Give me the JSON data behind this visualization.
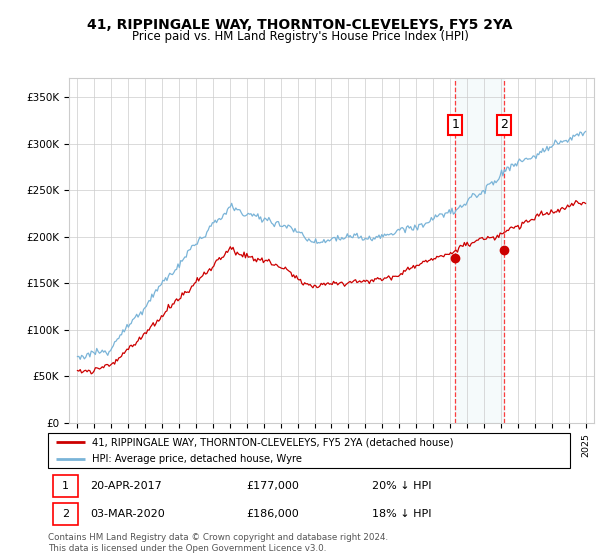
{
  "title": "41, RIPPINGALE WAY, THORNTON-CLEVELEYS, FY5 2YA",
  "subtitle": "Price paid vs. HM Land Registry's House Price Index (HPI)",
  "legend_line1": "41, RIPPINGALE WAY, THORNTON-CLEVELEYS, FY5 2YA (detached house)",
  "legend_line2": "HPI: Average price, detached house, Wyre",
  "annotation1_date": "20-APR-2017",
  "annotation1_price": "£177,000",
  "annotation1_hpi": "20% ↓ HPI",
  "annotation2_date": "03-MAR-2020",
  "annotation2_price": "£186,000",
  "annotation2_hpi": "18% ↓ HPI",
  "footer": "Contains HM Land Registry data © Crown copyright and database right 2024.\nThis data is licensed under the Open Government Licence v3.0.",
  "hpi_color": "#7ab4d8",
  "price_color": "#cc0000",
  "sale1_year": 2017.3,
  "sale2_year": 2020.17,
  "sale1_price": 177000,
  "sale2_price": 186000,
  "ylim_min": 0,
  "ylim_max": 370000,
  "xlim_min": 1994.5,
  "xlim_max": 2025.5,
  "noise_seed": 10,
  "n_points": 370
}
